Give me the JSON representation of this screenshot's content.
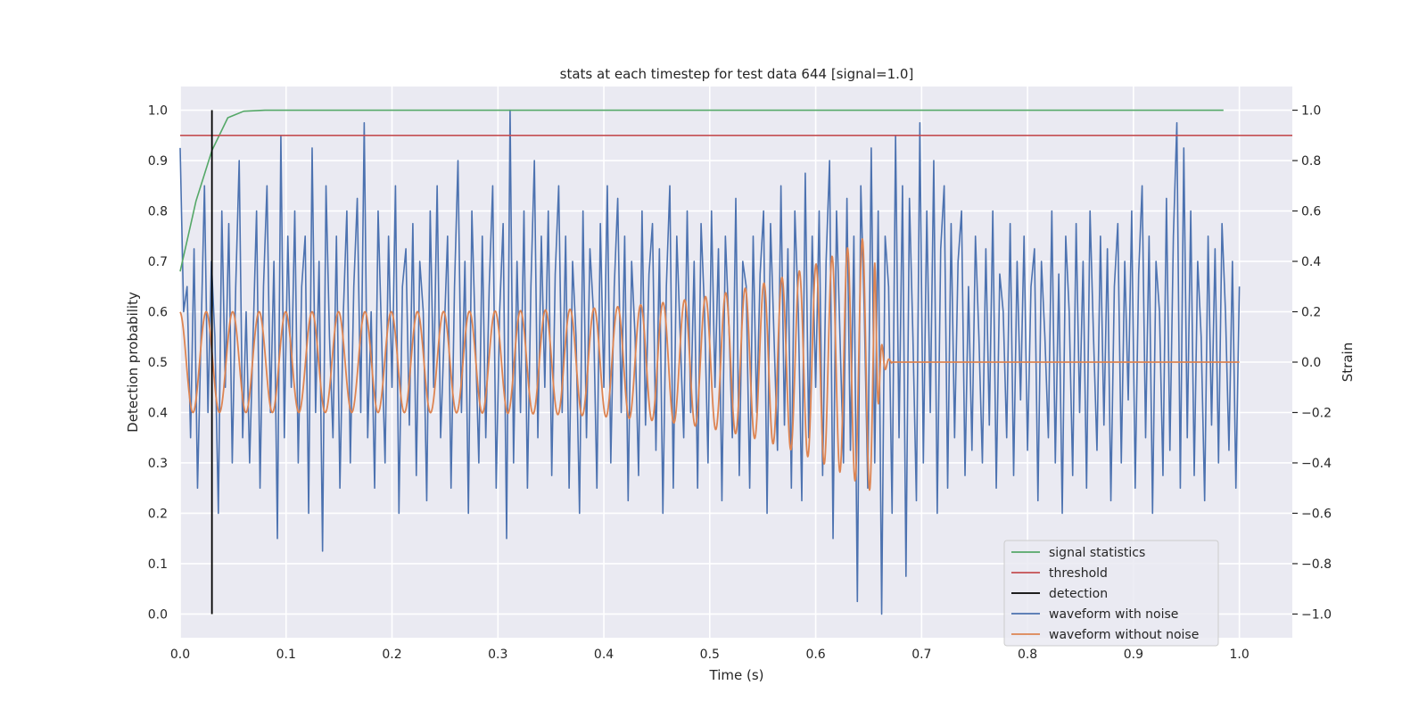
{
  "chart_data": {
    "type": "line",
    "title": "stats at each timestep for test data 644 [signal=1.0]",
    "xlabel": "Time (s)",
    "ylabel": "Detection probability",
    "y2label": "Strain",
    "xlim": [
      0.0,
      1.05
    ],
    "ylim": [
      -0.047,
      1.047
    ],
    "y2lim": [
      -1.094,
      1.094
    ],
    "xticks": [
      "0.0",
      "0.1",
      "0.2",
      "0.3",
      "0.4",
      "0.5",
      "0.6",
      "0.7",
      "0.8",
      "0.9",
      "1.0"
    ],
    "yticks": [
      "0.0",
      "0.1",
      "0.2",
      "0.3",
      "0.4",
      "0.5",
      "0.6",
      "0.7",
      "0.8",
      "0.9",
      "1.0"
    ],
    "y2ticks": [
      "−1.0",
      "−0.8",
      "−0.6",
      "−0.4",
      "−0.2",
      "0.0",
      "0.2",
      "0.4",
      "0.6",
      "0.8",
      "1.0"
    ],
    "grid": true,
    "legend_position": "lower-right",
    "background": "#eaeaf2",
    "series": [
      {
        "name": "signal statistics",
        "axis": "left",
        "color": "#55a868",
        "x": [
          0.0,
          0.015,
          0.03,
          0.045,
          0.06,
          0.08,
          0.985
        ],
        "y": [
          0.68,
          0.82,
          0.92,
          0.985,
          0.998,
          1.0,
          1.0
        ]
      },
      {
        "name": "threshold",
        "axis": "left",
        "color": "#c44e52",
        "x": [
          0.0,
          1.05
        ],
        "y": [
          0.95,
          0.95
        ]
      },
      {
        "name": "detection",
        "axis": "left",
        "color": "#000000",
        "x": [
          0.03,
          0.03
        ],
        "y": [
          0.0,
          1.0
        ]
      },
      {
        "name": "waveform with noise",
        "axis": "right",
        "color": "#4c72b0",
        "x_start": 0.0,
        "x_end": 1.0,
        "y": [
          0.85,
          0.2,
          0.3,
          -0.3,
          0.45,
          -0.5,
          0.1,
          0.7,
          -0.2,
          0.4,
          0.1,
          -0.6,
          0.6,
          -0.1,
          0.55,
          -0.4,
          0.3,
          0.8,
          -0.3,
          0.2,
          -0.4,
          0.1,
          0.6,
          -0.5,
          0.3,
          0.7,
          -0.2,
          0.4,
          -0.7,
          0.9,
          -0.3,
          0.5,
          -0.1,
          0.6,
          -0.4,
          0.3,
          0.5,
          -0.6,
          0.85,
          -0.2,
          0.4,
          -0.75,
          0.7,
          0.1,
          -0.3,
          0.5,
          -0.5,
          0.2,
          0.6,
          -0.4,
          0.3,
          0.65,
          -0.2,
          0.95,
          -0.3,
          0.2,
          -0.5,
          0.6,
          0.1,
          -0.4,
          0.5,
          -0.1,
          0.7,
          -0.6,
          0.3,
          0.45,
          -0.25,
          0.55,
          -0.45,
          0.4,
          0.2,
          -0.55,
          0.6,
          -0.1,
          0.7,
          -0.3,
          0.1,
          0.5,
          -0.5,
          0.3,
          0.8,
          -0.2,
          0.4,
          -0.6,
          0.6,
          0.1,
          -0.4,
          0.5,
          -0.3,
          0.3,
          0.7,
          -0.5,
          0.2,
          0.55,
          -0.7,
          1.0,
          -0.4,
          0.4,
          -0.2,
          0.6,
          -0.5,
          0.3,
          0.8,
          -0.3,
          0.5,
          -0.1,
          0.6,
          -0.45,
          0.35,
          0.7,
          -0.2,
          0.5,
          -0.5,
          0.4,
          0.1,
          -0.6,
          0.6,
          -0.3,
          0.45,
          0.2,
          -0.5,
          0.55,
          -0.1,
          0.7,
          -0.4,
          0.3,
          0.65,
          -0.2,
          0.5,
          -0.55,
          0.4,
          0.1,
          -0.45,
          0.6,
          -0.25,
          0.35,
          0.55,
          -0.35,
          0.45,
          -0.6,
          0.3,
          0.7,
          -0.5,
          0.5,
          0.1,
          -0.3,
          0.6,
          -0.2,
          0.4,
          -0.5,
          0.55,
          0.2,
          -0.4,
          0.6,
          -0.1,
          0.45,
          -0.55,
          0.5,
          0.15,
          -0.3,
          0.65,
          -0.45,
          0.4,
          0.3,
          -0.5,
          0.5,
          -0.2,
          0.35,
          0.6,
          -0.6,
          0.55,
          0.1,
          -0.35,
          0.7,
          -0.25,
          0.45,
          -0.5,
          0.6,
          0.2,
          -0.55,
          0.75,
          -0.3,
          0.5,
          -0.1,
          0.6,
          -0.45,
          0.4,
          0.8,
          -0.7,
          0.6,
          0.1,
          -0.4,
          0.65,
          -0.35,
          0.5,
          -0.95,
          0.7,
          0.2,
          -0.5,
          0.85,
          -0.4,
          0.6,
          -1.0,
          0.5,
          0.3,
          -0.6,
          0.9,
          -0.3,
          0.7,
          -0.85,
          0.65,
          0.1,
          -0.55,
          0.95,
          -0.4,
          0.6,
          -0.2,
          0.8,
          -0.6,
          0.45,
          0.7,
          -0.5,
          0.55,
          -0.3,
          0.4,
          0.6,
          -0.45,
          0.3,
          -0.35,
          0.5,
          0.1,
          -0.4,
          0.45,
          -0.25,
          0.6,
          -0.5,
          0.35,
          0.2,
          -0.3,
          0.55,
          -0.45,
          0.4,
          -0.15,
          0.5,
          -0.35,
          0.3,
          0.45,
          -0.55,
          0.4,
          0.1,
          -0.3,
          0.6,
          -0.4,
          0.35,
          -0.6,
          0.5,
          0.2,
          -0.45,
          0.55,
          -0.2,
          0.4,
          -0.5,
          0.6,
          0.1,
          -0.35,
          0.5,
          -0.25,
          0.45,
          -0.55,
          0.3,
          0.55,
          -0.4,
          0.4,
          -0.15,
          0.6,
          -0.5,
          0.35,
          0.7,
          -0.3,
          0.5,
          -0.6,
          0.4,
          0.2,
          -0.45,
          0.65,
          -0.35,
          0.5,
          0.95,
          -0.5,
          0.85,
          -0.3,
          0.6,
          -0.45,
          0.4,
          0.1,
          -0.55,
          0.5,
          -0.25,
          0.45,
          -0.4,
          0.55,
          0.2,
          -0.35,
          0.4,
          -0.5,
          0.3
        ]
      },
      {
        "name": "waveform without noise",
        "axis": "right",
        "color": "#dd8452",
        "formula_hint": "chirp: amplitude ~0.2 rising to ~0.5 near merger at t~0.655 s, frequency ~40 Hz rising; zero after t~0.67 s",
        "x_start": 0.0,
        "x_end": 1.0
      }
    ]
  }
}
